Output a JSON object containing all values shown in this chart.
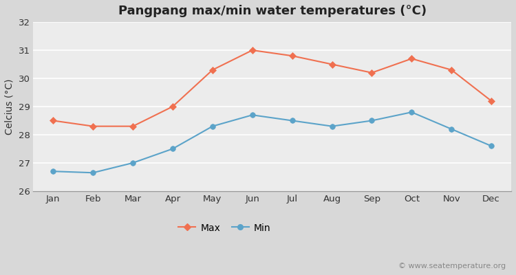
{
  "title": "Pangpang max/min water temperatures (°C)",
  "ylabel": "Celcius (°C)",
  "months": [
    "Jan",
    "Feb",
    "Mar",
    "Apr",
    "May",
    "Jun",
    "Jul",
    "Aug",
    "Sep",
    "Oct",
    "Nov",
    "Dec"
  ],
  "max_temps": [
    28.5,
    28.3,
    28.3,
    29.0,
    30.3,
    31.0,
    30.8,
    30.5,
    30.2,
    30.7,
    30.3,
    29.2
  ],
  "min_temps": [
    26.7,
    26.65,
    27.0,
    27.5,
    28.3,
    28.7,
    28.5,
    28.3,
    28.5,
    28.8,
    28.2,
    27.6
  ],
  "max_color": "#f07050",
  "min_color": "#5ba3c9",
  "ylim": [
    26,
    32
  ],
  "yticks": [
    26,
    27,
    28,
    29,
    30,
    31,
    32
  ],
  "fig_bg_color": "#d8d8d8",
  "plot_bg_color": "#ececec",
  "grid_color": "#ffffff",
  "watermark": "© www.seatemperature.org",
  "legend_labels": [
    "Max",
    "Min"
  ],
  "title_fontsize": 13,
  "label_fontsize": 10,
  "tick_fontsize": 9.5,
  "watermark_fontsize": 8
}
